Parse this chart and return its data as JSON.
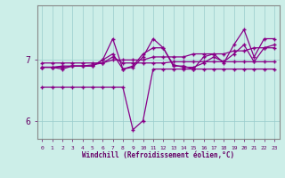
{
  "xlabel": "Windchill (Refroidissement éolien,°C)",
  "background_color": "#cceee8",
  "line_color": "#880088",
  "grid_color": "#99cccc",
  "axis_color": "#660066",
  "text_color": "#660066",
  "spine_color": "#888888",
  "xlim": [
    -0.5,
    23.5
  ],
  "ylim": [
    5.7,
    7.9
  ],
  "yticks": [
    6,
    7
  ],
  "xticks": [
    0,
    1,
    2,
    3,
    4,
    5,
    6,
    7,
    8,
    9,
    10,
    11,
    12,
    13,
    14,
    15,
    16,
    17,
    18,
    19,
    20,
    21,
    22,
    23
  ],
  "series1": [
    6.95,
    6.95,
    6.95,
    6.95,
    6.95,
    6.95,
    6.95,
    7.0,
    7.0,
    7.0,
    7.0,
    7.05,
    7.05,
    7.05,
    7.05,
    7.1,
    7.1,
    7.1,
    7.1,
    7.15,
    7.15,
    7.2,
    7.2,
    7.2
  ],
  "series2": [
    6.88,
    6.88,
    6.9,
    6.9,
    6.9,
    6.92,
    6.95,
    7.05,
    6.95,
    6.95,
    6.95,
    6.95,
    6.95,
    6.97,
    6.97,
    6.97,
    6.97,
    6.97,
    6.97,
    6.97,
    6.97,
    6.97,
    6.97,
    6.97
  ],
  "series3": [
    6.88,
    6.88,
    6.88,
    6.9,
    6.9,
    6.9,
    7.0,
    7.35,
    6.85,
    6.88,
    7.05,
    7.35,
    7.2,
    6.9,
    6.9,
    6.85,
    7.05,
    7.1,
    6.95,
    7.25,
    7.5,
    7.05,
    7.35,
    7.35
  ],
  "series4": [
    6.88,
    6.88,
    6.85,
    6.9,
    6.9,
    6.9,
    7.0,
    7.1,
    6.85,
    6.9,
    7.1,
    7.2,
    7.2,
    6.92,
    6.88,
    6.88,
    6.95,
    7.05,
    6.97,
    7.1,
    7.25,
    6.97,
    7.2,
    7.25
  ],
  "series_low": [
    6.55,
    6.55,
    6.55,
    6.55,
    6.55,
    6.55,
    6.55,
    6.55,
    6.55,
    5.85,
    6.0,
    6.85,
    6.85,
    6.85,
    6.85,
    6.85,
    6.85,
    6.85,
    6.85,
    6.85,
    6.85,
    6.85,
    6.85,
    6.85
  ]
}
